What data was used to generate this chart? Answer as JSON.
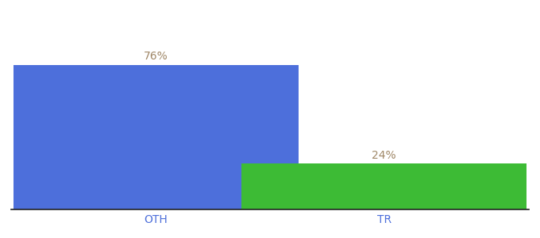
{
  "categories": [
    "OTH",
    "TR"
  ],
  "values": [
    76,
    24
  ],
  "bar_colors": [
    "#4d6fdb",
    "#3dbb35"
  ],
  "label_texts": [
    "76%",
    "24%"
  ],
  "label_color": "#a08868",
  "background_color": "#ffffff",
  "bar_width": 0.55,
  "tick_color": "#4d6fdb",
  "tick_fontsize": 10,
  "label_fontsize": 10,
  "ylim": [
    0,
    100
  ],
  "x_positions": [
    0.28,
    0.72
  ]
}
